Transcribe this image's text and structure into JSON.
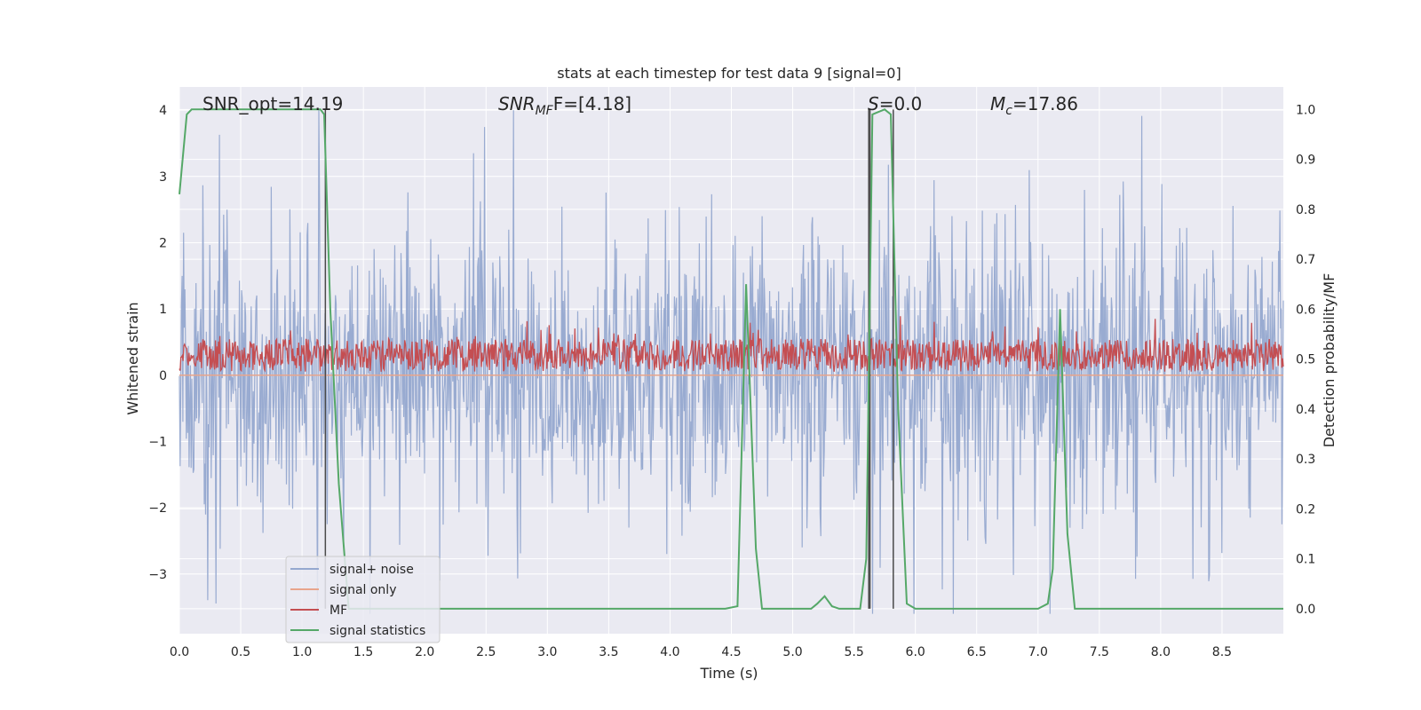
{
  "chart_data": {
    "type": "line",
    "title": "stats at each timestep for test data 9 [signal=0]",
    "xlabel": "Time (s)",
    "ylabel": "Whitened strain",
    "y2label": "Detection probability/MF",
    "xlim": [
      0,
      9.0
    ],
    "ylim": [
      -3.9,
      4.35
    ],
    "y2lim": [
      -0.05,
      1.045
    ],
    "xticks": [
      "0.0",
      "0.5",
      "1.0",
      "1.5",
      "2.0",
      "2.5",
      "3.0",
      "3.5",
      "4.0",
      "4.5",
      "5.0",
      "5.5",
      "6.0",
      "6.5",
      "7.0",
      "7.5",
      "8.0",
      "8.5"
    ],
    "yticks": [
      "4",
      "3",
      "2",
      "1",
      "0",
      "−1",
      "−2",
      "−3"
    ],
    "y2ticks": [
      "1.0",
      "0.9",
      "0.8",
      "0.7",
      "0.6",
      "0.5",
      "0.4",
      "0.3",
      "0.2",
      "0.1",
      "0.0"
    ],
    "grid": true,
    "legend_position": "lower-left",
    "annotations": {
      "snr_opt": "SNR_opt=14.19",
      "snr_mf_main": "SNR",
      "snr_mf_sub": "MF",
      "snr_mf_value": "F=[4.18]",
      "s_main": "S",
      "s_value": "=0.0",
      "mc_main": "M",
      "mc_sub": "c",
      "mc_value": "=17.86"
    },
    "series": [
      {
        "name": "signal+ noise",
        "color": "#95a8cf",
        "axis": "left",
        "description_range": [
          -3.6,
          4.0
        ]
      },
      {
        "name": "signal only",
        "color": "#e8a58c",
        "axis": "left",
        "values_constant": 0.0
      },
      {
        "name": "MF",
        "color": "#c44e52",
        "axis": "left",
        "description_range": [
          0.0,
          0.95
        ]
      },
      {
        "name": "signal statistics",
        "color": "#55a868",
        "axis": "right",
        "x": [
          0.0,
          0.06,
          0.1,
          0.5,
          1.0,
          1.15,
          1.18,
          1.23,
          1.3,
          1.38,
          1.5,
          2.0,
          3.0,
          4.0,
          4.45,
          4.55,
          4.62,
          4.7,
          4.75,
          5.0,
          5.15,
          5.2,
          5.26,
          5.32,
          5.38,
          5.45,
          5.55,
          5.6,
          5.65,
          5.7,
          5.75,
          5.8,
          5.86,
          5.93,
          6.0,
          6.1,
          6.5,
          7.0,
          7.08,
          7.12,
          7.18,
          7.24,
          7.3,
          7.6,
          8.0,
          8.5,
          9.0
        ],
        "values": [
          0.83,
          0.99,
          1.0,
          1.0,
          1.0,
          1.0,
          0.99,
          0.6,
          0.25,
          0.0,
          0.0,
          0.0,
          0.0,
          0.0,
          0.0,
          0.005,
          0.65,
          0.12,
          0.0,
          0.0,
          0.0,
          0.01,
          0.025,
          0.005,
          0.0,
          0.0,
          0.0,
          0.1,
          0.99,
          0.995,
          1.0,
          0.99,
          0.4,
          0.01,
          0.0,
          0.0,
          0.0,
          0.0,
          0.01,
          0.08,
          0.6,
          0.15,
          0.0,
          0.0,
          0.0,
          0.0,
          0.0
        ]
      }
    ],
    "vertical_markers_x": [
      1.19,
      5.62,
      5.63,
      5.82
    ],
    "detection_range_right": [
      0.0,
      1.0
    ]
  }
}
